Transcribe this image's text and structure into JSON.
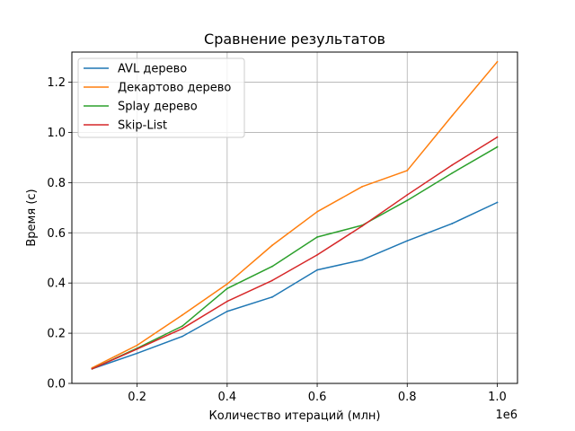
{
  "chart_data": {
    "type": "line",
    "title": "Сравнение результатов",
    "xlabel": "Количество итераций (млн)",
    "ylabel": "Время (с)",
    "x_offset_label": "1e6",
    "x": [
      100000,
      200000,
      300000,
      400000,
      500000,
      600000,
      700000,
      800000,
      900000,
      1000000
    ],
    "xlim": [
      55000,
      1045000
    ],
    "ylim": [
      0,
      1.32
    ],
    "xticks": [
      200000,
      400000,
      600000,
      800000,
      1000000
    ],
    "xtick_labels": [
      "0.2",
      "0.4",
      "0.6",
      "0.8",
      "1.0"
    ],
    "yticks": [
      0.0,
      0.2,
      0.4,
      0.6,
      0.8,
      1.0,
      1.2
    ],
    "ytick_labels": [
      "0.0",
      "0.2",
      "0.4",
      "0.6",
      "0.8",
      "1.0",
      "1.2"
    ],
    "grid": true,
    "legend_position": "top-left",
    "series": [
      {
        "name": "AVL дерево",
        "color": "#1f77b4",
        "values": [
          0.058,
          0.12,
          0.187,
          0.287,
          0.344,
          0.452,
          0.492,
          0.568,
          0.637,
          0.721
        ]
      },
      {
        "name": "Декартово дерево",
        "color": "#ff7f0e",
        "values": [
          0.062,
          0.152,
          0.272,
          0.396,
          0.55,
          0.684,
          0.784,
          0.848,
          1.067,
          1.281
        ]
      },
      {
        "name": "Splay дерево",
        "color": "#2ca02c",
        "values": [
          0.058,
          0.14,
          0.228,
          0.378,
          0.466,
          0.583,
          0.63,
          0.729,
          0.838,
          0.942
        ]
      },
      {
        "name": "Skip-List",
        "color": "#d62728",
        "values": [
          0.058,
          0.137,
          0.218,
          0.327,
          0.41,
          0.512,
          0.627,
          0.751,
          0.87,
          0.981
        ]
      }
    ]
  }
}
